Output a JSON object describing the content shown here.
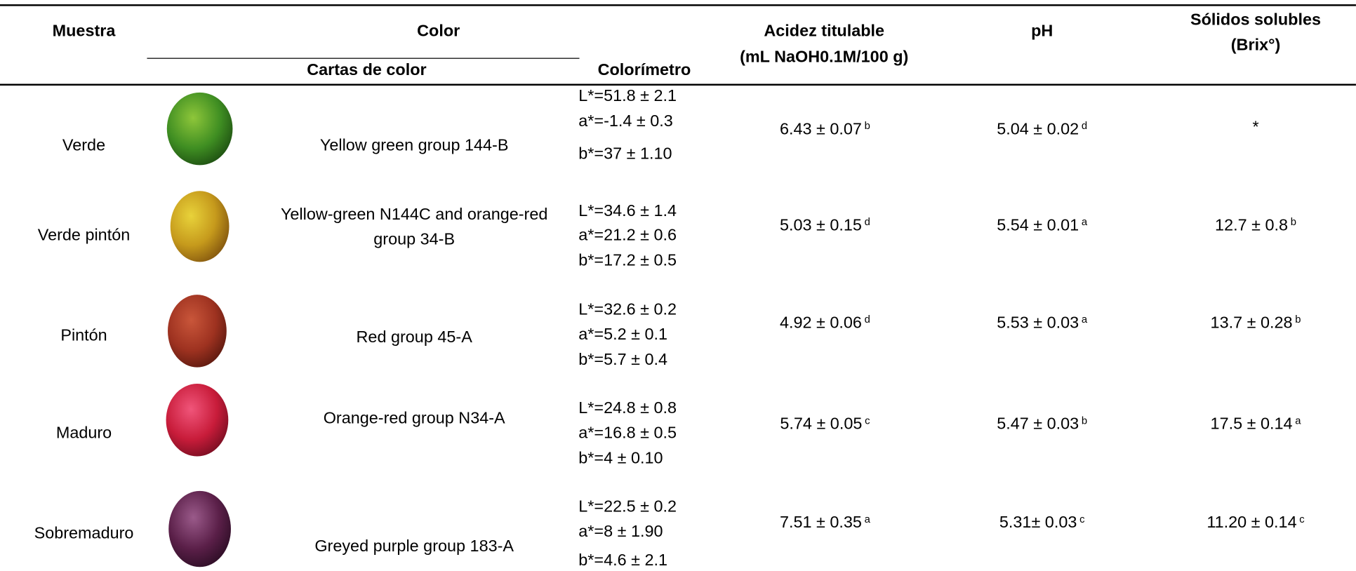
{
  "header": {
    "muestra": "Muestra",
    "color": "Color",
    "cartas": "Cartas de color",
    "colorimetro": "Colorímetro",
    "acidez": [
      "Acidez titulable",
      "(mL NaOH0.1M/100 g)"
    ],
    "ph": "pH",
    "solidos": [
      "Sólidos solubles",
      "(Brix°)"
    ]
  },
  "rows": [
    {
      "muestra": "Verde",
      "carta": [
        "Yellow green group 144-B"
      ],
      "colorimetro": [
        "L*=51.8 ± 2.1",
        "a*=-1.4 ± 0.3",
        "b*=37 ± 1.10"
      ],
      "acidez": {
        "value": "6.43 ± 0.07",
        "sup": "b"
      },
      "ph": {
        "value": "5.04 ± 0.02",
        "sup": "d"
      },
      "solidos": {
        "value": "*"
      }
    },
    {
      "muestra": "Verde pintón",
      "carta": [
        "Yellow-green N144C and orange-red",
        "group 34-B"
      ],
      "colorimetro": [
        "L*=34.6 ± 1.4",
        "a*=21.2 ± 0.6",
        "b*=17.2 ± 0.5"
      ],
      "acidez": {
        "value": "5.03 ± 0.15",
        "sup": "d"
      },
      "ph": {
        "value": "5.54 ± 0.01",
        "sup": "a"
      },
      "solidos": {
        "value": "12.7 ± 0.8",
        "sup": "b"
      }
    },
    {
      "muestra": "Pintón",
      "carta": [
        "Red group 45-A"
      ],
      "colorimetro": [
        "L*=32.6 ± 0.2",
        "a*=5.2 ± 0.1",
        "b*=5.7 ± 0.4"
      ],
      "acidez": {
        "value": "4.92 ± 0.06",
        "sup": "d"
      },
      "ph": {
        "value": "5.53 ± 0.03",
        "sup": "a"
      },
      "solidos": {
        "value": "13.7 ± 0.28",
        "sup": "b"
      }
    },
    {
      "muestra": "Maduro",
      "carta": [
        "Orange-red group N34-A"
      ],
      "colorimetro": [
        "L*=24.8 ± 0.8",
        "a*=16.8 ± 0.5",
        "b*=4 ± 0.10"
      ],
      "acidez": {
        "value": "5.74 ± 0.05",
        "sup": "c"
      },
      "ph": {
        "value": "5.47 ± 0.03",
        "sup": "b"
      },
      "solidos": {
        "value": "17.5 ± 0.14",
        "sup": "a"
      }
    },
    {
      "muestra": "Sobremaduro",
      "carta": [
        "Greyed purple group 183-A"
      ],
      "colorimetro": [
        "L*=22.5 ± 0.2",
        "a*=8 ± 1.90",
        "b*=4.6 ± 2.1"
      ],
      "acidez": {
        "value": "7.51 ± 0.35",
        "sup": "a"
      },
      "ph": {
        "value": "5.31± 0.03",
        "sup": "c"
      },
      "solidos": {
        "value": "11.20 ± 0.14",
        "sup": "c"
      }
    }
  ]
}
